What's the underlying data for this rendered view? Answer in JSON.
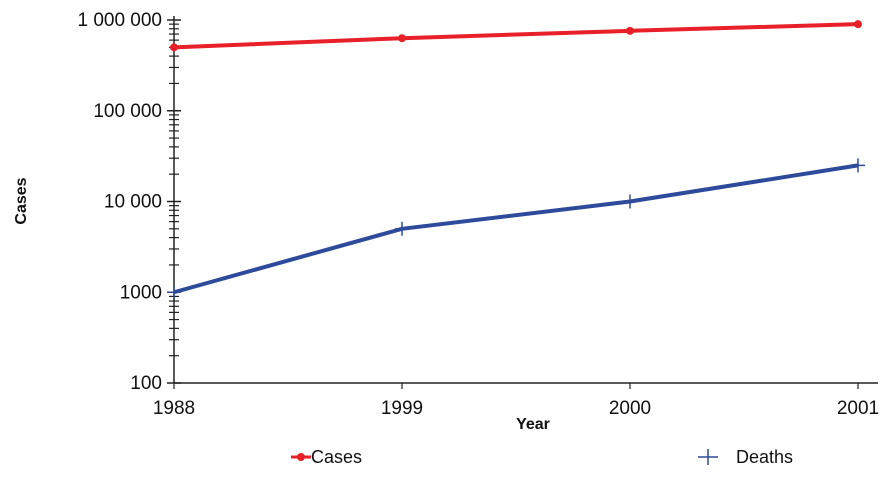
{
  "chart_data": {
    "type": "line",
    "xlabel": "Year",
    "ylabel": "Cases",
    "y_scale": "log",
    "ylim": [
      100,
      1000000
    ],
    "categories": [
      "1988",
      "1999",
      "2000",
      "2001"
    ],
    "y_ticks": [
      100,
      1000,
      10000,
      100000,
      1000000
    ],
    "y_tick_labels": [
      "100",
      "1000",
      "10 000",
      "100 000",
      "1 000 000"
    ],
    "grid": false,
    "legend_position": "bottom",
    "series": [
      {
        "name": "Cases",
        "values": [
          500000,
          630000,
          760000,
          900000
        ],
        "color": "#e8202a",
        "marker": "circle"
      },
      {
        "name": "Deaths",
        "values": [
          1000,
          5000,
          10000,
          25000
        ],
        "color": "#2e4b9b",
        "marker": "plus"
      }
    ]
  }
}
